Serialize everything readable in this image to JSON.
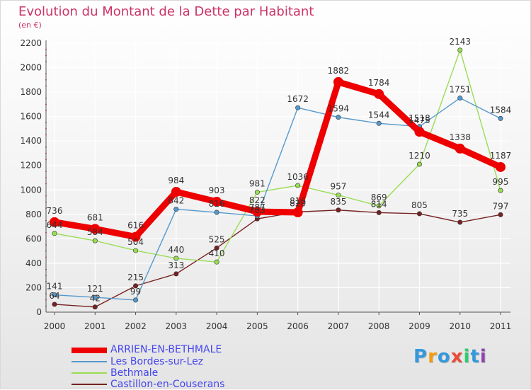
{
  "title": "Evolution du Montant de la Dette par Habitant",
  "subtitle": "(en €)",
  "chart_data": {
    "type": "line",
    "title": "Evolution du Montant de la Dette par Habitant",
    "subtitle": "(en €)",
    "xlabel": "",
    "ylabel": "",
    "categories": [
      "2000",
      "2001",
      "2002",
      "2003",
      "2004",
      "2005",
      "2006",
      "2007",
      "2008",
      "2009",
      "2010",
      "2011"
    ],
    "ylim": [
      0,
      2200
    ],
    "yticks": [
      0,
      200,
      400,
      600,
      800,
      1000,
      1200,
      1400,
      1600,
      1800,
      2000,
      2200
    ],
    "grid": true,
    "legend_position": "bottom-left",
    "series": [
      {
        "name": "ARRIEN-EN-BETHMALE",
        "color": "#ee0000",
        "values": [
          736,
          681,
          616,
          984,
          903,
          822,
          816,
          1882,
          1784,
          1475,
          1338,
          1187
        ],
        "labels": [
          "736",
          "681",
          "616",
          "984",
          "903",
          "822",
          "816",
          "1882",
          "1784",
          "1475",
          "1338",
          "1187"
        ]
      },
      {
        "name": "Les Bordes-sur-Lez",
        "color": "#5599cc",
        "values": [
          141,
          121,
          99,
          842,
          816,
          787,
          1672,
          1594,
          1544,
          1518,
          1751,
          1584
        ],
        "labels": [
          "141",
          "121",
          "99",
          "842",
          "816",
          "787",
          "1672",
          "1594",
          "1544",
          "1518",
          "1751",
          "1584"
        ]
      },
      {
        "name": "Bethmale",
        "color": "#99dd55",
        "values": [
          644,
          584,
          504,
          440,
          410,
          981,
          1036,
          957,
          869,
          1210,
          2143,
          995
        ],
        "labels": [
          "644",
          "584",
          "504",
          "440",
          "410",
          "981",
          "1036",
          "957",
          "869",
          "1210",
          "2143",
          "995"
        ]
      },
      {
        "name": "Castillon-en-Couserans",
        "color": "#772222",
        "values": [
          64,
          42,
          215,
          313,
          525,
          763,
          820,
          835,
          814,
          805,
          735,
          797
        ],
        "labels": [
          "64",
          "42",
          "215",
          "313",
          "525",
          "763",
          "820",
          "835",
          "814",
          "805",
          "735",
          "797"
        ]
      }
    ]
  },
  "brand": {
    "letters": [
      "P",
      "r",
      "o",
      "x",
      "i",
      "t",
      "i"
    ],
    "colors": [
      "#3399dd",
      "#f39c12",
      "#3399dd",
      "#e74c3c",
      "#2ecc71",
      "#3399dd",
      "#8e44ad"
    ]
  }
}
